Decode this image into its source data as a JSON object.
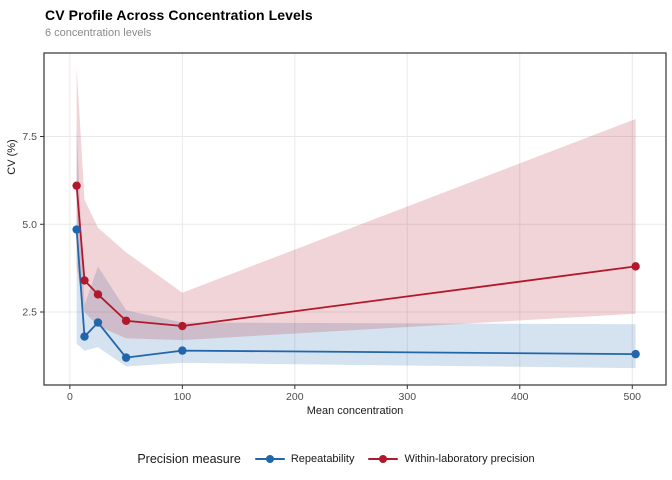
{
  "header": {
    "title": "CV Profile Across Concentration Levels",
    "subtitle": "6 concentration levels"
  },
  "legend": {
    "title": "Precision measure",
    "items": [
      {
        "label": "Repeatability",
        "color": "#2166ac"
      },
      {
        "label": "Within-laboratory precision",
        "color": "#b2182b"
      }
    ]
  },
  "chart_data": {
    "type": "line",
    "title": "CV Profile Across Concentration Levels",
    "subtitle": "6 concentration levels",
    "xlabel": "Mean concentration",
    "ylabel": "CV (%)",
    "x": [
      6,
      13,
      25,
      50,
      100,
      503
    ],
    "series": [
      {
        "name": "Repeatability",
        "color": "#2166ac",
        "values": [
          4.85,
          1.8,
          2.2,
          1.2,
          1.4,
          1.3
        ],
        "ribbon_lower": [
          1.6,
          1.4,
          1.5,
          0.95,
          1.05,
          0.9
        ],
        "ribbon_upper": [
          7.8,
          2.7,
          3.8,
          2.55,
          2.2,
          2.15
        ]
      },
      {
        "name": "Within-laboratory precision",
        "color": "#b2182b",
        "values": [
          6.1,
          3.4,
          3.0,
          2.25,
          2.1,
          3.8
        ],
        "ribbon_lower": [
          3.8,
          2.5,
          2.1,
          1.75,
          1.7,
          2.45
        ],
        "ribbon_upper": [
          9.5,
          5.7,
          4.9,
          4.2,
          3.05,
          8.0
        ]
      }
    ],
    "xlim": [
      -23,
      530
    ],
    "ylim": [
      0.42,
      9.88
    ],
    "x_ticks": [
      0,
      100,
      200,
      300,
      400,
      500
    ],
    "x_tick_labels": [
      "0",
      "100",
      "200",
      "300",
      "400",
      "500"
    ],
    "y_ticks": [
      2.5,
      5.0,
      7.5
    ],
    "y_tick_labels": [
      "2.5",
      "5.0",
      "7.5"
    ],
    "grid": true,
    "legend_position": "bottom",
    "ribbon_opacity": 0.19
  },
  "style_colors": {
    "grid": "#e9e9e9",
    "panel_border": "#333333",
    "tick_mark": "#333333",
    "axis_text": "#4d4d4d",
    "axis_title": "#1a1a1a",
    "subtitle": "#8a8a8a"
  }
}
